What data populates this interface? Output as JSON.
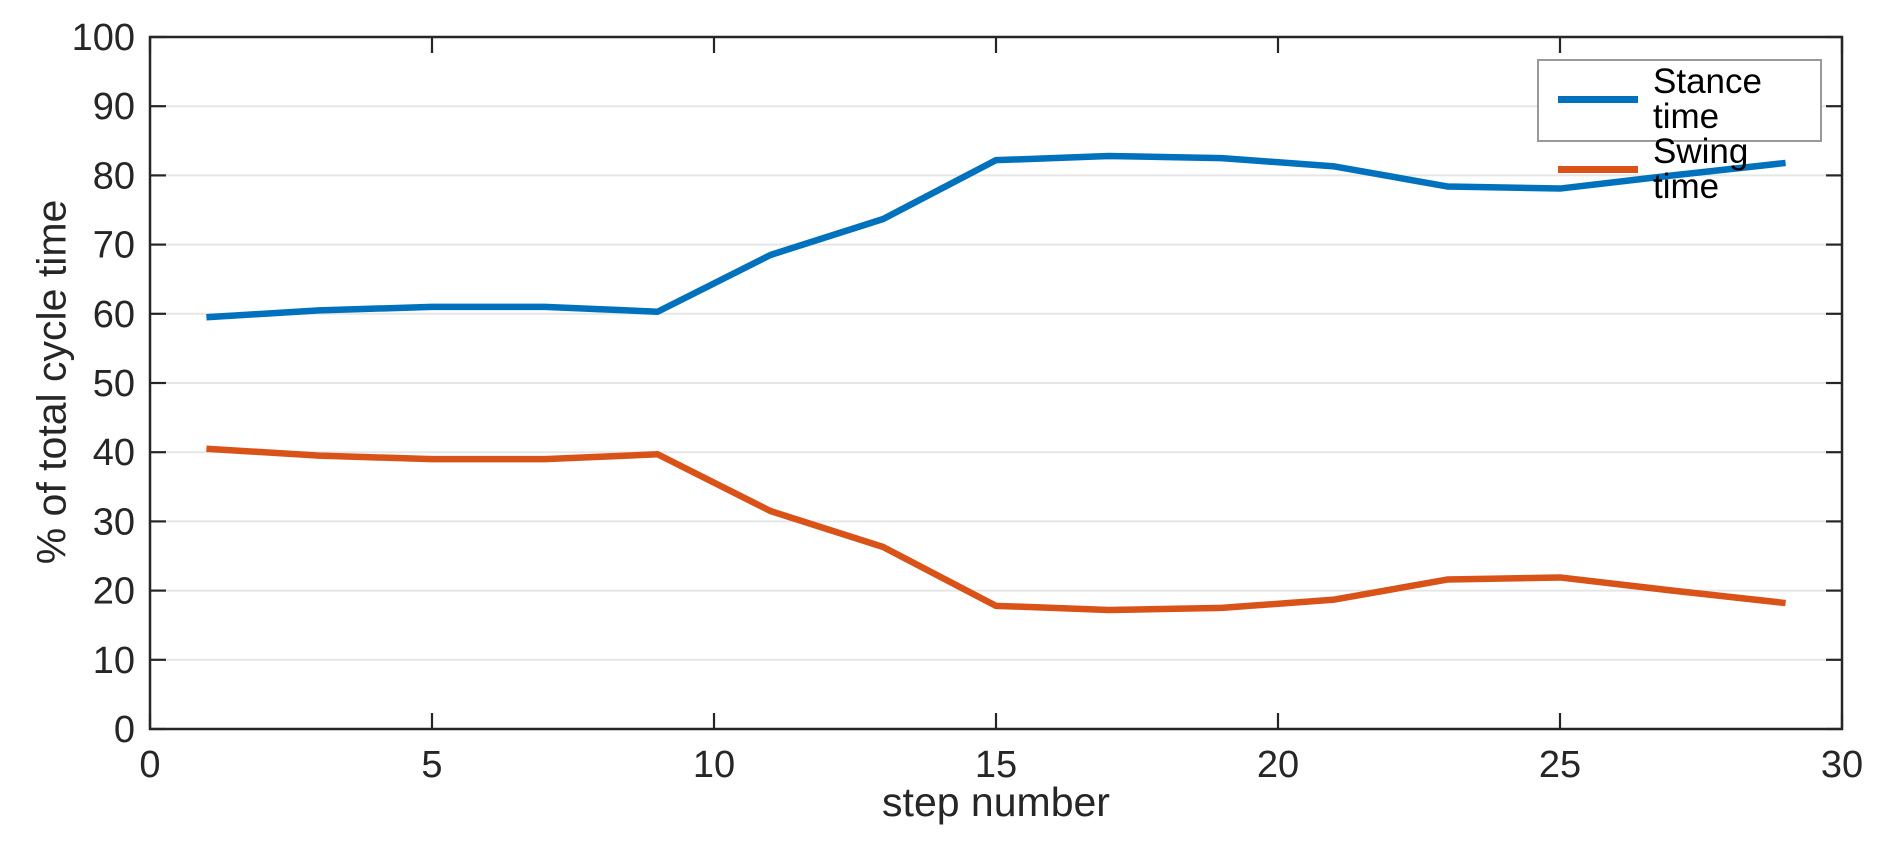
{
  "chart_data": {
    "type": "line",
    "title": "",
    "xlabel": "step number",
    "ylabel": "% of total cycle time",
    "xlim": [
      0,
      30
    ],
    "ylim": [
      0,
      100
    ],
    "xticks": [
      0,
      5,
      10,
      15,
      20,
      25,
      30
    ],
    "yticks": [
      0,
      10,
      20,
      30,
      40,
      50,
      60,
      70,
      80,
      90,
      100
    ],
    "grid": "horizontal-only",
    "legend_position": "top-right-inside",
    "x": [
      1,
      3,
      5,
      7,
      9,
      11,
      13,
      15,
      17,
      19,
      21,
      23,
      25,
      27,
      29
    ],
    "series": [
      {
        "name": "Stance time",
        "color": "#0072BD",
        "values": [
          59.5,
          60.5,
          61.0,
          61.0,
          60.3,
          68.5,
          73.7,
          82.2,
          82.8,
          82.5,
          81.3,
          78.4,
          78.1,
          80.0,
          81.8
        ]
      },
      {
        "name": "Swing time",
        "color": "#D95319",
        "values": [
          40.5,
          39.5,
          39.0,
          39.0,
          39.7,
          31.5,
          26.3,
          17.8,
          17.2,
          17.5,
          18.7,
          21.6,
          21.9,
          20.0,
          18.2
        ]
      }
    ]
  },
  "colors": {
    "axis": "#262626",
    "grid": "#e6e6e6",
    "background": "#ffffff",
    "legend_border": "#999999",
    "tick_label": "#262626"
  }
}
